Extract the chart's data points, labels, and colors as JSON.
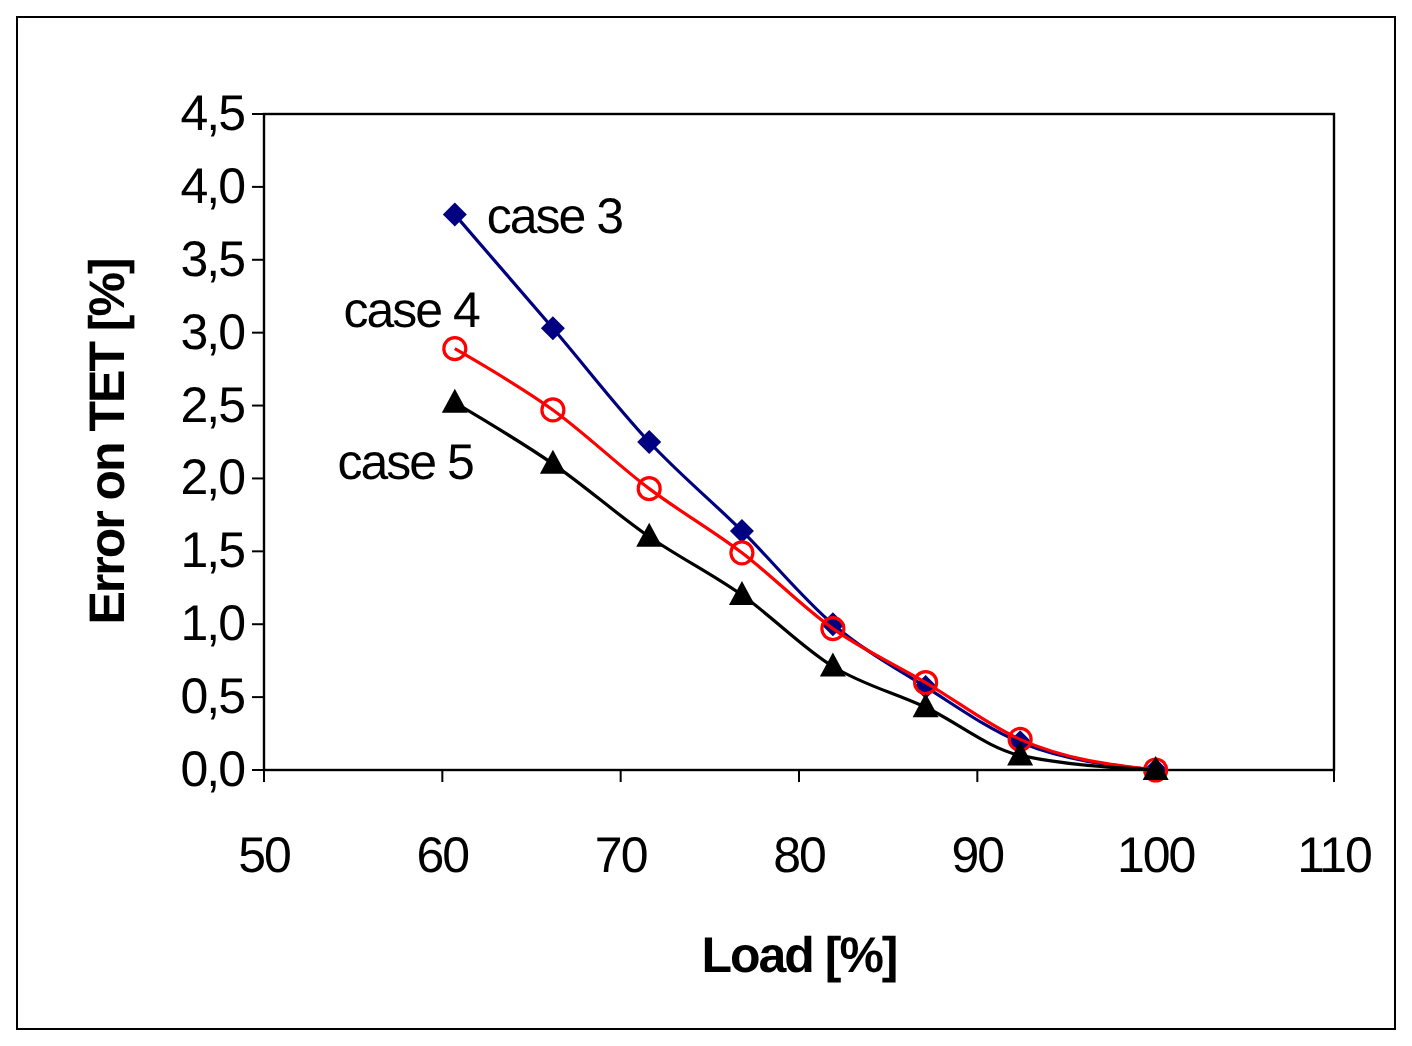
{
  "chart_data": {
    "type": "line",
    "xlabel": "Load [%]",
    "ylabel": "Error on TET [%]",
    "xlim": [
      50,
      110
    ],
    "xticks": [
      50,
      60,
      70,
      80,
      90,
      100,
      110
    ],
    "ylim": [
      0,
      4.5
    ],
    "yticks": [
      {
        "value": 0,
        "label": "0,0"
      },
      {
        "value": 0.5,
        "label": "0,5"
      },
      {
        "value": 1,
        "label": "1,0"
      },
      {
        "value": 1.5,
        "label": "1,5"
      },
      {
        "value": 2,
        "label": "2,0"
      },
      {
        "value": 2.5,
        "label": "2,5"
      },
      {
        "value": 3,
        "label": "3,0"
      },
      {
        "value": 3.5,
        "label": "3,5"
      },
      {
        "value": 4,
        "label": "4,0"
      },
      {
        "value": 4.5,
        "label": "4,5"
      }
    ],
    "grid": false,
    "legend": false,
    "x": [
      60.7,
      66.2,
      71.6,
      76.8,
      81.9,
      87.1,
      92.4,
      100
    ],
    "series": [
      {
        "name": "case 3",
        "color": "#000080",
        "marker": "diamond",
        "values": [
          3.81,
          3.03,
          2.25,
          1.64,
          1.0,
          0.57,
          0.19,
          0
        ]
      },
      {
        "name": "case 4",
        "color": "#ff0000",
        "marker": "circle",
        "values": [
          2.89,
          2.47,
          1.93,
          1.49,
          0.97,
          0.6,
          0.21,
          0
        ]
      },
      {
        "name": "case 5",
        "color": "#000000",
        "marker": "triangle",
        "values": [
          2.52,
          2.1,
          1.6,
          1.2,
          0.71,
          0.43,
          0.1,
          0
        ]
      }
    ]
  }
}
